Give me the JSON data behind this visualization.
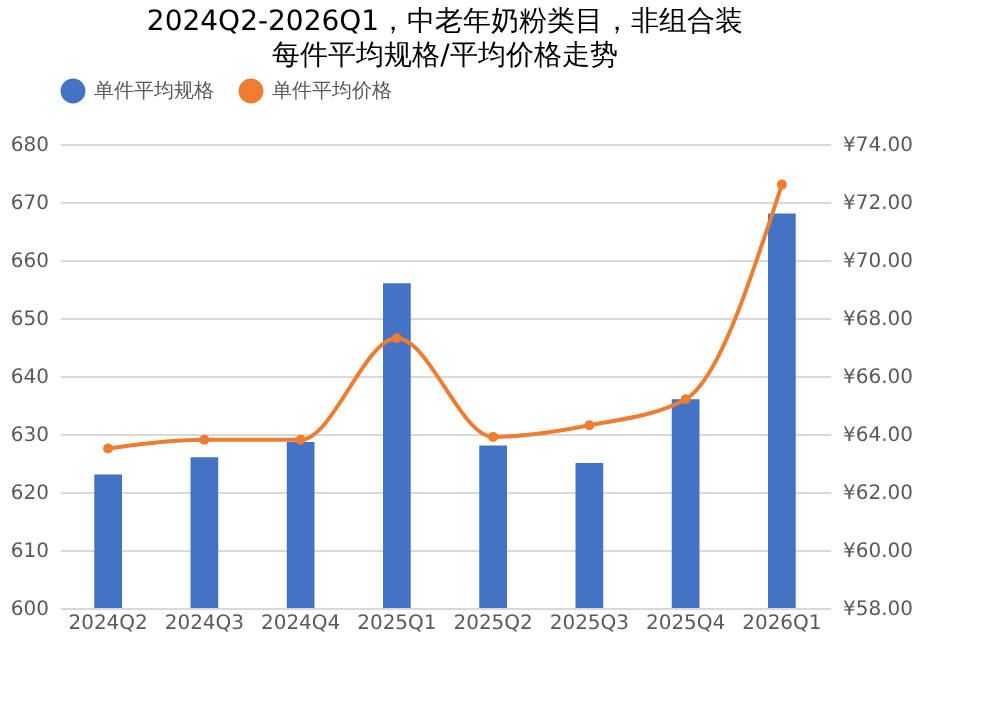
{
  "chart_data": {
    "type": "bar",
    "title": "2024Q2-2026Q1，中老年奶粉类目，非组合装",
    "subtitle": "每件平均规格/平均价格走势",
    "categories": [
      "2024Q2",
      "2024Q3",
      "2024Q4",
      "2025Q1",
      "2025Q2",
      "2025Q3",
      "2025Q4",
      "2026Q1"
    ],
    "series": [
      {
        "name": "单件平均规格",
        "color": "#4472c4",
        "values": [
          623,
          626,
          628.6,
          656,
          628,
          625,
          636,
          668
        ]
      },
      {
        "name": "单件平均价格",
        "type": "line",
        "axis": "y2",
        "color": "#ed7d31",
        "values": [
          63.5,
          63.8,
          63.8,
          67.3,
          63.9,
          64.3,
          65.2,
          72.6
        ]
      }
    ],
    "ylim": [
      600,
      680
    ],
    "yticks": [
      600,
      610,
      620,
      630,
      640,
      650,
      660,
      670,
      680
    ],
    "y2lim": [
      58,
      74
    ],
    "y2ticks": [
      {
        "value": 58,
        "label": "¥58.00"
      },
      {
        "value": 60,
        "label": "¥60.00"
      },
      {
        "value": 62,
        "label": "¥62.00"
      },
      {
        "value": 64,
        "label": "¥64.00"
      },
      {
        "value": 66,
        "label": "¥66.00"
      },
      {
        "value": 68,
        "label": "¥68.00"
      },
      {
        "value": 70,
        "label": "¥70.00"
      },
      {
        "value": 72,
        "label": "¥72.00"
      },
      {
        "value": 74,
        "label": "¥74.00"
      }
    ],
    "grid": "y",
    "legend": "top",
    "marker": "circle"
  }
}
